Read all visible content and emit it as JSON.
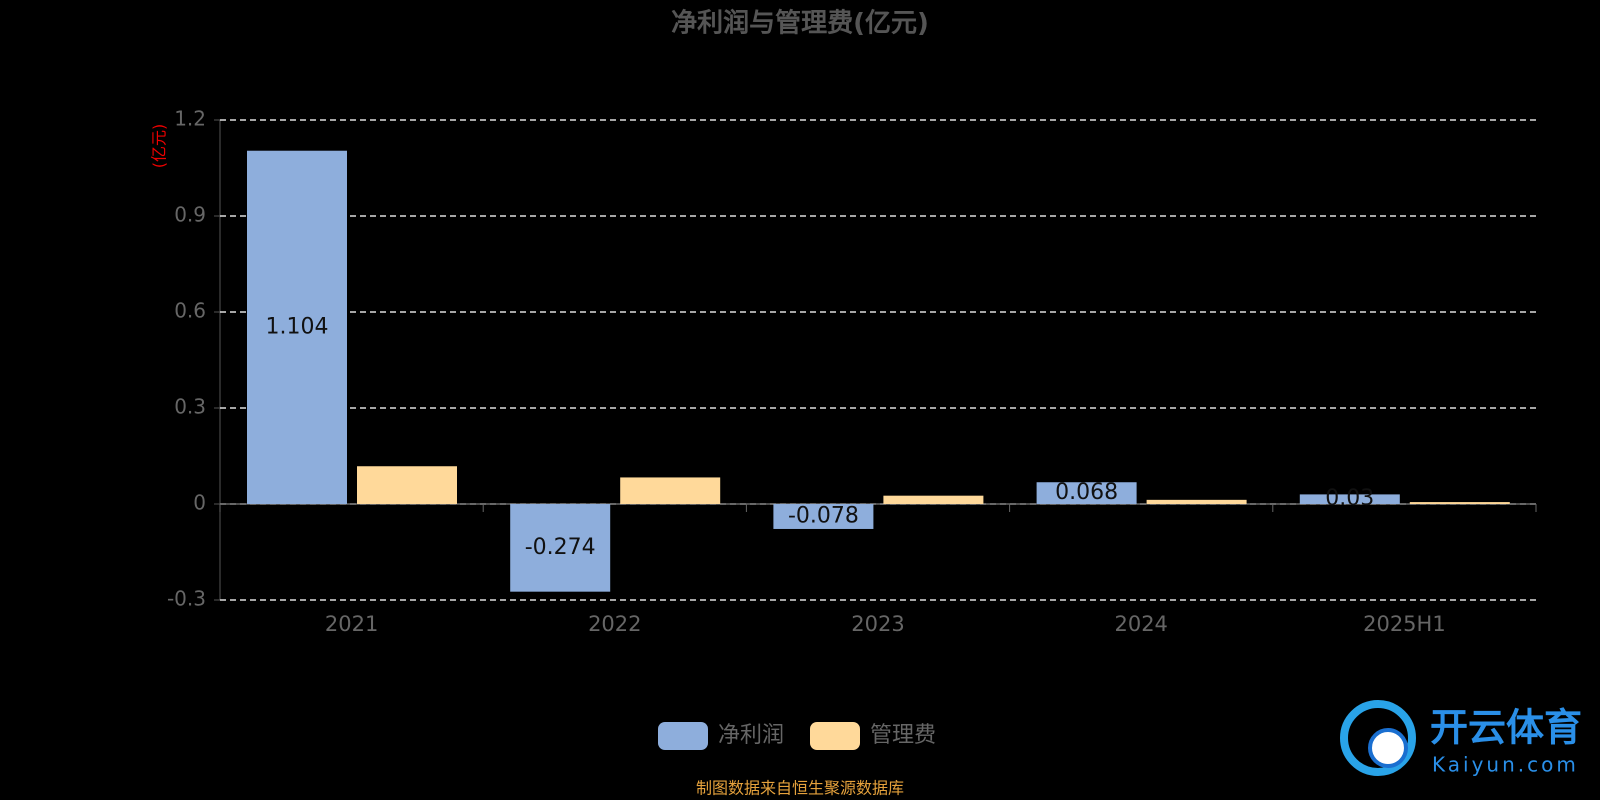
{
  "chart_data": {
    "type": "bar",
    "title": "净利润与管理费(亿元)",
    "y_unit": "(亿元)",
    "categories": [
      "2021",
      "2022",
      "2023",
      "2024",
      "2025H1"
    ],
    "series": [
      {
        "name": "净利润",
        "color": "#8eaedc",
        "values": [
          1.104,
          -0.274,
          -0.078,
          0.068,
          0.03
        ]
      },
      {
        "name": "管理费",
        "color": "#ffd99a",
        "values": [
          0.118,
          0.083,
          0.026,
          0.013,
          0.006
        ]
      }
    ],
    "ylim": [
      -0.3,
      1.2
    ],
    "yticks": [
      1.2,
      0.9,
      0.6,
      0.3,
      0,
      -0.3
    ],
    "grid": true,
    "source": "制图数据来自恒生聚源数据库",
    "watermark": {
      "brand": "开云体育",
      "site": "Kaiyun.com"
    }
  }
}
